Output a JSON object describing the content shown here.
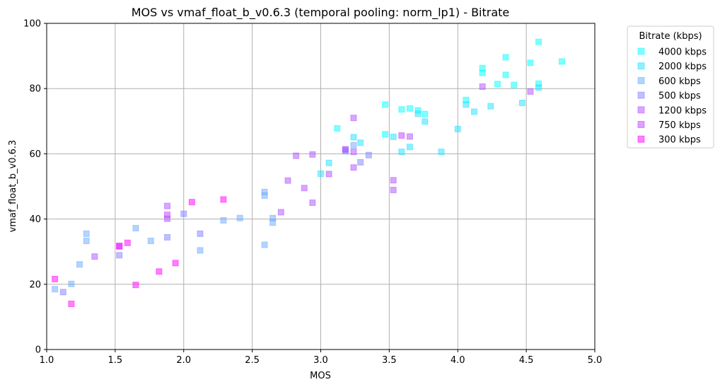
{
  "chart_data": {
    "type": "scatter",
    "title": "MOS vs vmaf_float_b_v0.6.3 (temporal pooling: norm_lp1) - Bitrate",
    "xlabel": "MOS",
    "ylabel": "vmaf_float_b_v0.6.3",
    "xlim": [
      1.0,
      5.0
    ],
    "ylim": [
      0,
      100
    ],
    "xticks": [
      "1.0",
      "1.5",
      "2.0",
      "2.5",
      "3.0",
      "3.5",
      "4.0",
      "4.5",
      "5.0"
    ],
    "yticks": [
      "0",
      "20",
      "40",
      "60",
      "80",
      "100"
    ],
    "grid": true,
    "legend": {
      "title": "Bitrate (kbps)",
      "placement": "outside-top-right"
    },
    "series": [
      {
        "name": "4000 kbps",
        "color": "#00ffff",
        "points": [
          [
            3.12,
            67.8
          ],
          [
            3.47,
            75.1
          ],
          [
            3.59,
            73.6
          ],
          [
            3.65,
            73.9
          ],
          [
            3.71,
            73.3
          ],
          [
            3.76,
            72.2
          ],
          [
            4.06,
            76.5
          ],
          [
            4.18,
            86.3
          ],
          [
            4.18,
            84.8
          ],
          [
            4.29,
            81.4
          ],
          [
            4.35,
            89.6
          ],
          [
            4.35,
            84.2
          ],
          [
            4.41,
            81.1
          ],
          [
            4.53,
            87.9
          ],
          [
            4.59,
            94.3
          ],
          [
            4.59,
            81.5
          ],
          [
            4.76,
            88.3
          ],
          [
            3.47,
            66.0
          ]
        ]
      },
      {
        "name": "2000 kbps",
        "color": "#1ee1ff",
        "points": [
          [
            3.0,
            53.9
          ],
          [
            3.06,
            57.2
          ],
          [
            3.24,
            65.1
          ],
          [
            3.29,
            63.4
          ],
          [
            3.53,
            65.2
          ],
          [
            3.59,
            60.6
          ],
          [
            3.65,
            62.1
          ],
          [
            3.71,
            72.3
          ],
          [
            3.76,
            69.9
          ],
          [
            3.88,
            60.6
          ],
          [
            4.0,
            67.6
          ],
          [
            4.06,
            75.1
          ],
          [
            4.12,
            72.9
          ],
          [
            4.24,
            74.6
          ],
          [
            4.47,
            75.6
          ],
          [
            4.59,
            80.3
          ]
        ]
      },
      {
        "name": "600 kbps",
        "color": "#6aaaff",
        "points": [
          [
            1.06,
            18.5
          ],
          [
            1.18,
            20.1
          ],
          [
            1.24,
            26.1
          ],
          [
            1.29,
            35.5
          ],
          [
            1.29,
            33.3
          ],
          [
            1.65,
            37.2
          ],
          [
            1.76,
            33.3
          ],
          [
            2.12,
            30.4
          ],
          [
            2.29,
            39.6
          ],
          [
            2.41,
            40.3
          ],
          [
            2.59,
            32.1
          ],
          [
            2.59,
            48.3
          ],
          [
            2.59,
            47.2
          ],
          [
            2.65,
            40.3
          ],
          [
            2.65,
            38.9
          ],
          [
            3.18,
            61.2
          ],
          [
            3.24,
            62.6
          ]
        ]
      },
      {
        "name": "500 kbps",
        "color": "#8080ff",
        "points": [
          [
            1.12,
            17.6
          ],
          [
            1.53,
            28.9
          ],
          [
            1.88,
            34.4
          ],
          [
            2.0,
            41.6
          ],
          [
            2.12,
            35.5
          ],
          [
            3.18,
            60.8
          ],
          [
            3.29,
            57.4
          ],
          [
            3.35,
            59.6
          ]
        ]
      },
      {
        "name": "1200 kbps",
        "color": "#b04fff",
        "points": [
          [
            1.35,
            28.5
          ],
          [
            1.88,
            44.0
          ],
          [
            1.88,
            40.1
          ],
          [
            2.71,
            42.1
          ],
          [
            2.76,
            51.8
          ],
          [
            2.82,
            59.4
          ],
          [
            2.88,
            49.5
          ],
          [
            2.94,
            45.0
          ],
          [
            2.94,
            59.8
          ],
          [
            3.06,
            53.8
          ],
          [
            3.24,
            55.8
          ],
          [
            3.24,
            60.6
          ],
          [
            3.24,
            71.0
          ],
          [
            3.53,
            51.9
          ],
          [
            3.53,
            48.9
          ],
          [
            3.65,
            65.3
          ],
          [
            4.18,
            80.6
          ],
          [
            4.53,
            79.1
          ]
        ]
      },
      {
        "name": "750 kbps",
        "color": "#c040ff",
        "points": [
          [
            1.53,
            31.8
          ],
          [
            1.88,
            41.3
          ],
          [
            3.18,
            61.4
          ],
          [
            3.59,
            65.6
          ]
        ]
      },
      {
        "name": "300 kbps",
        "color": "#ff00ff",
        "points": [
          [
            1.06,
            21.6
          ],
          [
            1.18,
            14.0
          ],
          [
            1.53,
            31.6
          ],
          [
            1.59,
            32.7
          ],
          [
            1.65,
            19.8
          ],
          [
            1.82,
            23.9
          ],
          [
            1.94,
            26.5
          ],
          [
            2.06,
            45.2
          ],
          [
            2.29,
            46.0
          ]
        ]
      }
    ]
  }
}
